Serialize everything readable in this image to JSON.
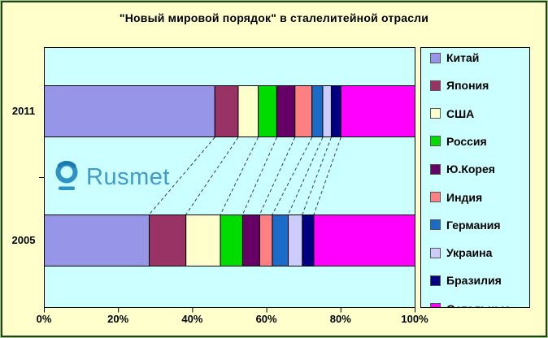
{
  "title": "\"Новый мировой порядок\" в сталелитейной отрасли",
  "logo": {
    "text": "Rusmet"
  },
  "colors": {
    "background": "#FFFFCC",
    "plot_background": "#CCFFFF",
    "frame_border_dark": "#1B431B",
    "frame_border_light": "#A9C77F",
    "axis": "#000000",
    "connector_line": "#2F4256",
    "logo_blue": "#3E9BCA",
    "logo_icon_blue": "#2E92C5"
  },
  "chart_data": {
    "type": "bar",
    "orientation": "horizontal",
    "stacked": true,
    "unit": "%",
    "title": "\"Новый мировой порядок\" в сталелитейной отрасли",
    "categories": [
      "2011",
      "2005"
    ],
    "x_ticks": [
      "0%",
      "20%",
      "40%",
      "60%",
      "80%",
      "100%"
    ],
    "xlim": [
      0,
      100
    ],
    "legend_position": "right",
    "grid": false,
    "series": [
      {
        "name": "Китай",
        "color": "#9795E8",
        "values": [
          46.0,
          28.3
        ]
      },
      {
        "name": "Япония",
        "color": "#993366",
        "values": [
          6.3,
          9.9
        ]
      },
      {
        "name": "США",
        "color": "#FFFFCC",
        "values": [
          5.4,
          9.3
        ]
      },
      {
        "name": "Россия",
        "color": "#00DC00",
        "values": [
          5.0,
          6.0
        ]
      },
      {
        "name": "Ю.Корея",
        "color": "#660066",
        "values": [
          4.9,
          4.6
        ]
      },
      {
        "name": "Индия",
        "color": "#FF8080",
        "values": [
          4.6,
          3.4
        ]
      },
      {
        "name": "Германия",
        "color": "#1A6CC8",
        "values": [
          2.9,
          4.3
        ]
      },
      {
        "name": "Украина",
        "color": "#CCCCFF",
        "values": [
          2.3,
          3.8
        ]
      },
      {
        "name": "Бразилия",
        "color": "#000080",
        "values": [
          2.6,
          3.1
        ]
      },
      {
        "name": "Остальные",
        "color": "#FF00FF",
        "values": [
          20.0,
          27.3
        ]
      }
    ]
  }
}
